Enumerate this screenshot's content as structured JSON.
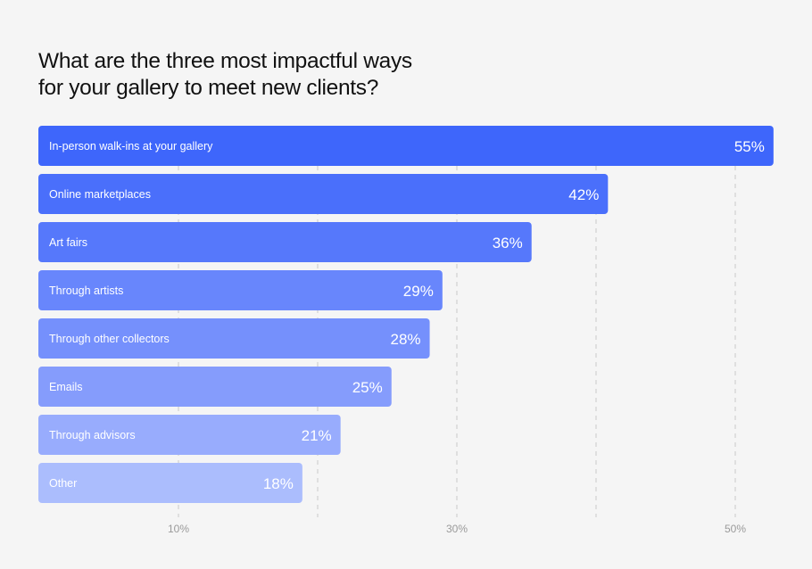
{
  "chart_data": {
    "type": "bar",
    "orientation": "horizontal",
    "title_lines": [
      "What are the three most impactful ways",
      "for your gallery to meet new clients?"
    ],
    "categories": [
      "In-person walk-ins at your gallery",
      "Online marketplaces",
      "Art fairs",
      "Through artists",
      "Through other collectors",
      "Emails",
      "Through advisors",
      "Other"
    ],
    "values": [
      55,
      42,
      36,
      29,
      28,
      25,
      21,
      18
    ],
    "value_labels": [
      "55%",
      "42%",
      "36%",
      "29%",
      "28%",
      "25%",
      "21%",
      "18%"
    ],
    "colors": [
      "#3e66fb",
      "#4a6ffb",
      "#5678fb",
      "#6886fc",
      "#7590fc",
      "#859cfc",
      "#98acfd",
      "#abbdfd"
    ],
    "x_ticks": [
      10,
      30,
      50
    ],
    "x_tick_labels": [
      "10%",
      "30%",
      "50%"
    ],
    "gridlines": [
      10,
      20,
      30,
      40,
      50
    ],
    "xlim": [
      0,
      55
    ],
    "grid": true
  }
}
